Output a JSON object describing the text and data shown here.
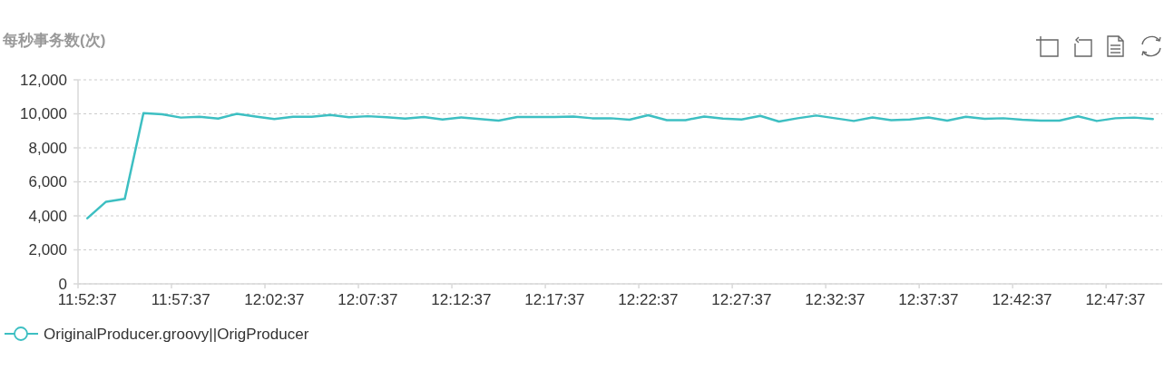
{
  "chart_data": {
    "type": "line",
    "ylabel": "每秒事务数(次)",
    "categories": [
      "11:52:37",
      null,
      null,
      null,
      null,
      "11:57:37",
      null,
      null,
      null,
      null,
      "12:02:37",
      null,
      null,
      null,
      null,
      "12:07:37",
      null,
      null,
      null,
      null,
      "12:12:37",
      null,
      null,
      null,
      null,
      "12:17:37",
      null,
      null,
      null,
      null,
      "12:22:37",
      null,
      null,
      null,
      null,
      "12:27:37",
      null,
      null,
      null,
      null,
      "12:32:37",
      null,
      null,
      null,
      null,
      "12:37:37",
      null,
      null,
      null,
      null,
      "12:42:37",
      null,
      null,
      null,
      null,
      "12:47:37",
      null,
      null
    ],
    "series": [
      {
        "name": "OriginalProducer.groovy||OrigProducer",
        "color": "#3dbfc2",
        "values": [
          3860,
          4830,
          5000,
          10040,
          9970,
          9780,
          9830,
          9720,
          10000,
          9840,
          9690,
          9830,
          9830,
          9930,
          9800,
          9860,
          9800,
          9720,
          9810,
          9670,
          9790,
          9690,
          9600,
          9810,
          9810,
          9810,
          9840,
          9740,
          9740,
          9650,
          9920,
          9630,
          9630,
          9840,
          9720,
          9670,
          9880,
          9550,
          9740,
          9900,
          9740,
          9580,
          9790,
          9630,
          9670,
          9790,
          9600,
          9830,
          9710,
          9740,
          9650,
          9600,
          9600,
          9850,
          9580,
          9740,
          9780,
          9690
        ]
      }
    ],
    "ylim": [
      0,
      12000
    ],
    "yticks": [
      0,
      {
        "value": 2000,
        "label": "2,000"
      },
      {
        "value": 4000,
        "label": "4,000"
      },
      {
        "value": 6000,
        "label": "6,000"
      },
      {
        "value": 8000,
        "label": "8,000"
      },
      {
        "value": 10000,
        "label": "10,000"
      },
      {
        "value": 12000,
        "label": "12,000"
      }
    ],
    "grid": "y",
    "legend": "bottom left",
    "line_style": "solid"
  }
}
